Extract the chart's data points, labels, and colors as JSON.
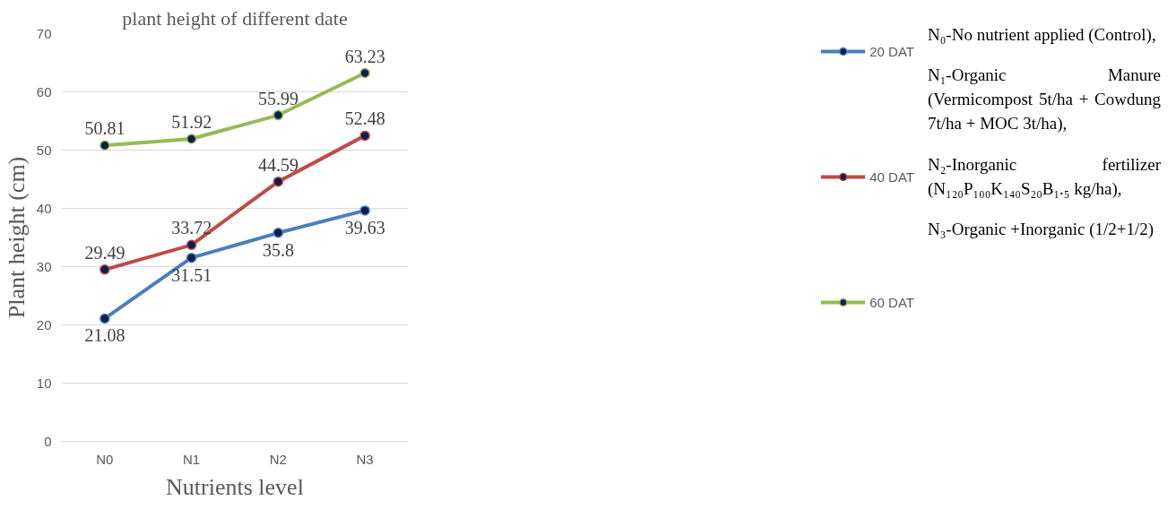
{
  "chart_data": {
    "type": "line",
    "title": "plant height of different date",
    "xlabel": "Nutrients level",
    "ylabel": "Plant height (cm)",
    "categories": [
      "N0",
      "N1",
      "N2",
      "N3"
    ],
    "series": [
      {
        "name": "20 DAT",
        "color": "#4a7ebb",
        "values": [
          21.08,
          31.51,
          35.8,
          39.63
        ]
      },
      {
        "name": "40 DAT",
        "color": "#be4b48",
        "values": [
          29.49,
          33.72,
          44.59,
          52.48
        ]
      },
      {
        "name": "60 DAT",
        "color": "#98b954",
        "values": [
          50.81,
          51.92,
          55.99,
          63.23
        ]
      }
    ],
    "ylim": [
      0,
      70
    ],
    "yticks": [
      0,
      10,
      20,
      30,
      40,
      50,
      60,
      70
    ],
    "grid": "y",
    "legend": "right",
    "marker": "circle",
    "line_style": "solid",
    "data_labels": true,
    "annotations": [
      "N₀-No nutrient applied (Control),",
      "N₁-Organic Manure (Vermicompost 5t/ha + Cowdung 7t/ha + MOC 3t/ha),",
      "N₂-Inorganic fertilizer (N₁₂₀P₁₀₀K₁₄₀S₂₀B₁.₅ kg/ha),",
      "N₃-Organic +Inorganic (1/2+1/2)"
    ]
  }
}
